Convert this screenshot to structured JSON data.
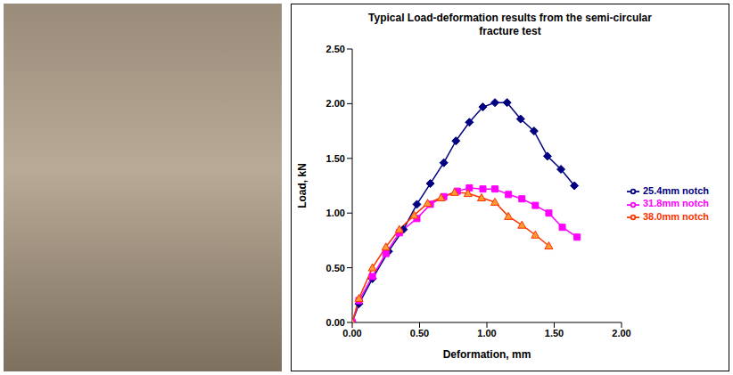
{
  "chart_data": {
    "type": "line",
    "title": "Typical Load-deformation results from the semi-circular fracture test",
    "x_label": "Deformation, mm",
    "y_label": "Load, kN",
    "xlim": [
      0,
      2.0
    ],
    "xticks": [
      {
        "value": 0,
        "label": "0.00"
      },
      {
        "value": 0.5,
        "label": "0.50"
      },
      {
        "value": 1.0,
        "label": "1.00"
      },
      {
        "value": 1.5,
        "label": "1.50"
      },
      {
        "value": 2.0,
        "label": "2.00"
      }
    ],
    "ylim": [
      0,
      2.5
    ],
    "yticks": [
      {
        "value": 0,
        "label": "0.00"
      },
      {
        "value": 0.5,
        "label": "0.50"
      },
      {
        "value": 1.0,
        "label": "1.00"
      },
      {
        "value": 1.5,
        "label": "1.50"
      },
      {
        "value": 2.0,
        "label": "2.00"
      },
      {
        "value": 2.5,
        "label": "2.50"
      }
    ],
    "grid": false,
    "legend": "right",
    "series": [
      {
        "name": "25.4mm notch",
        "color": "#000080",
        "marker": "diamond",
        "x": [
          0,
          0.05,
          0.15,
          0.27,
          0.38,
          0.48,
          0.58,
          0.68,
          0.77,
          0.87,
          0.97,
          1.06,
          1.15,
          1.25,
          1.35,
          1.45,
          1.55,
          1.65
        ],
        "values": [
          0,
          0.17,
          0.4,
          0.65,
          0.85,
          1.08,
          1.27,
          1.46,
          1.66,
          1.83,
          1.97,
          2.01,
          2.01,
          1.86,
          1.75,
          1.52,
          1.4,
          1.25
        ]
      },
      {
        "name": "31.8mm notch",
        "color": "#FF00FF",
        "marker": "square",
        "x": [
          0,
          0.05,
          0.15,
          0.25,
          0.35,
          0.48,
          0.58,
          0.68,
          0.78,
          0.87,
          0.97,
          1.06,
          1.16,
          1.26,
          1.36,
          1.46,
          1.56,
          1.67
        ],
        "values": [
          0,
          0.2,
          0.42,
          0.63,
          0.82,
          0.95,
          1.08,
          1.15,
          1.2,
          1.23,
          1.22,
          1.22,
          1.17,
          1.13,
          1.07,
          1.0,
          0.87,
          0.78
        ]
      },
      {
        "name": "38.0mm notch",
        "color": "#FF3300",
        "marker": "triangle",
        "x": [
          0,
          0.05,
          0.15,
          0.25,
          0.35,
          0.46,
          0.56,
          0.66,
          0.76,
          0.86,
          0.96,
          1.06,
          1.16,
          1.26,
          1.36,
          1.46
        ],
        "values": [
          0,
          0.22,
          0.5,
          0.69,
          0.85,
          0.98,
          1.09,
          1.14,
          1.19,
          1.18,
          1.14,
          1.1,
          0.97,
          0.89,
          0.8,
          0.7
        ]
      }
    ]
  }
}
